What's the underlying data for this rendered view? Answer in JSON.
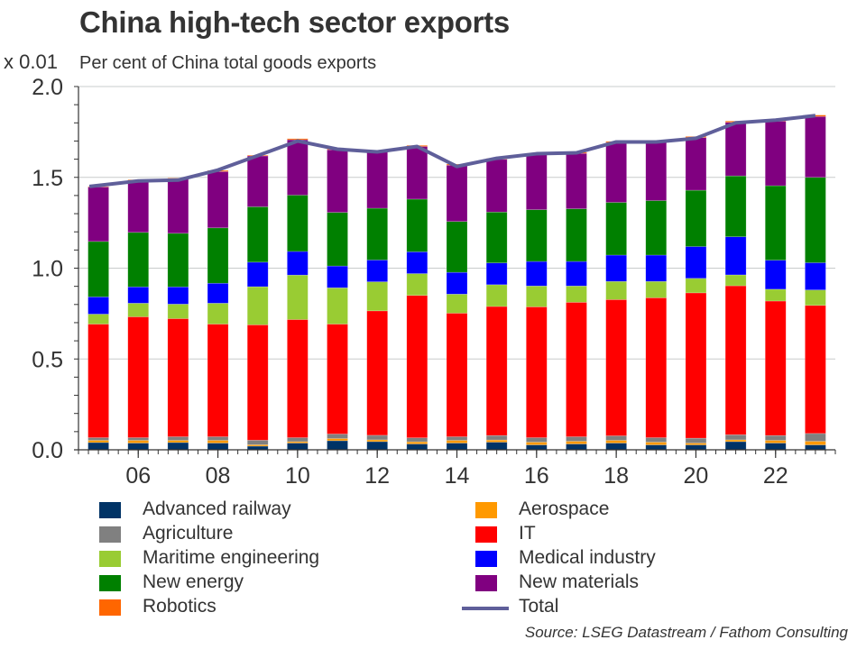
{
  "header": {
    "title": "China high-tech sector exports",
    "unit_label": "x 0.01",
    "subtitle": "Per cent of China total goods exports"
  },
  "source": "Source: LSEG Datastream / Fathom Consulting",
  "chart_data": {
    "type": "bar",
    "stacked": true,
    "title": "China high-tech sector exports",
    "subtitle": "Per cent of China total goods exports",
    "xlabel": "",
    "ylabel": "x 0.01",
    "ylim": [
      0,
      2.0
    ],
    "yticks": [
      "0.0",
      "0.5",
      "1.0",
      "1.5",
      "2.0"
    ],
    "ytick_values": [
      0,
      0.5,
      1.0,
      1.5,
      2.0
    ],
    "grid": true,
    "legend_position": "bottom",
    "categories": [
      "2005",
      "2006",
      "2007",
      "2008",
      "2009",
      "2010",
      "2011",
      "2012",
      "2013",
      "2014",
      "2015",
      "2016",
      "2017",
      "2018",
      "2019",
      "2020",
      "2021",
      "2022",
      "2023"
    ],
    "xtick_labels": [
      "06",
      "08",
      "10",
      "12",
      "14",
      "16",
      "18",
      "20",
      "22"
    ],
    "xtick_categories": [
      "2006",
      "2008",
      "2010",
      "2012",
      "2014",
      "2016",
      "2018",
      "2020",
      "2022"
    ],
    "series": [
      {
        "name": "Advanced railway",
        "color": "#003366",
        "values": [
          0.04,
          0.037,
          0.04,
          0.037,
          0.02,
          0.037,
          0.05,
          0.045,
          0.032,
          0.037,
          0.042,
          0.027,
          0.032,
          0.037,
          0.027,
          0.027,
          0.045,
          0.037,
          0.027
        ]
      },
      {
        "name": "Aerospace",
        "color": "#ff9900",
        "values": [
          0.012,
          0.015,
          0.012,
          0.015,
          0.008,
          0.008,
          0.012,
          0.01,
          0.012,
          0.015,
          0.012,
          0.015,
          0.015,
          0.015,
          0.015,
          0.01,
          0.01,
          0.015,
          0.02
        ]
      },
      {
        "name": "Agriculture",
        "color": "#808080",
        "values": [
          0.015,
          0.015,
          0.02,
          0.02,
          0.025,
          0.022,
          0.025,
          0.025,
          0.022,
          0.02,
          0.025,
          0.025,
          0.025,
          0.025,
          0.025,
          0.027,
          0.028,
          0.027,
          0.043
        ]
      },
      {
        "name": "IT",
        "color": "#ff0000",
        "values": [
          0.625,
          0.665,
          0.65,
          0.62,
          0.635,
          0.65,
          0.605,
          0.685,
          0.784,
          0.68,
          0.71,
          0.72,
          0.74,
          0.75,
          0.77,
          0.8,
          0.82,
          0.74,
          0.705
        ]
      },
      {
        "name": "Maritime engineering",
        "color": "#99cc33",
        "values": [
          0.055,
          0.075,
          0.08,
          0.115,
          0.21,
          0.245,
          0.2,
          0.16,
          0.12,
          0.105,
          0.12,
          0.115,
          0.09,
          0.1,
          0.09,
          0.08,
          0.06,
          0.065,
          0.085
        ]
      },
      {
        "name": "Medical industry",
        "color": "#0000ff",
        "values": [
          0.095,
          0.09,
          0.095,
          0.11,
          0.135,
          0.13,
          0.12,
          0.12,
          0.12,
          0.12,
          0.12,
          0.135,
          0.135,
          0.145,
          0.145,
          0.175,
          0.21,
          0.16,
          0.15
        ]
      },
      {
        "name": "New energy",
        "color": "#008000",
        "values": [
          0.305,
          0.3,
          0.295,
          0.305,
          0.305,
          0.31,
          0.295,
          0.285,
          0.29,
          0.28,
          0.28,
          0.285,
          0.29,
          0.29,
          0.3,
          0.31,
          0.335,
          0.41,
          0.47
        ]
      },
      {
        "name": "New materials",
        "color": "#800080",
        "values": [
          0.3,
          0.285,
          0.3,
          0.31,
          0.28,
          0.305,
          0.345,
          0.315,
          0.29,
          0.31,
          0.29,
          0.305,
          0.305,
          0.33,
          0.325,
          0.29,
          0.295,
          0.355,
          0.335
        ]
      },
      {
        "name": "Robotics",
        "color": "#ff6600",
        "values": [
          0.003,
          0.005,
          0.004,
          0.006,
          0.004,
          0.006,
          0.005,
          0.005,
          0.006,
          0.006,
          0.005,
          0.006,
          0.006,
          0.006,
          0.006,
          0.006,
          0.007,
          0.007,
          0.008
        ]
      }
    ],
    "line_series": {
      "name": "Total",
      "color": "#5f5f9a",
      "values": [
        1.45,
        1.48,
        1.485,
        1.54,
        1.62,
        1.7,
        1.655,
        1.64,
        1.67,
        1.56,
        1.605,
        1.63,
        1.635,
        1.695,
        1.695,
        1.715,
        1.8,
        1.815,
        1.84
      ]
    }
  },
  "legend": {
    "left": [
      "Advanced railway",
      "Agriculture",
      "Maritime engineering",
      "New energy",
      "Robotics"
    ],
    "left_colors": [
      "#003366",
      "#808080",
      "#99cc33",
      "#008000",
      "#ff6600"
    ],
    "right": [
      "Aerospace",
      "IT",
      "Medical industry",
      "New materials",
      "Total"
    ],
    "right_colors": [
      "#ff9900",
      "#ff0000",
      "#0000ff",
      "#800080",
      "#5f5f9a"
    ]
  }
}
